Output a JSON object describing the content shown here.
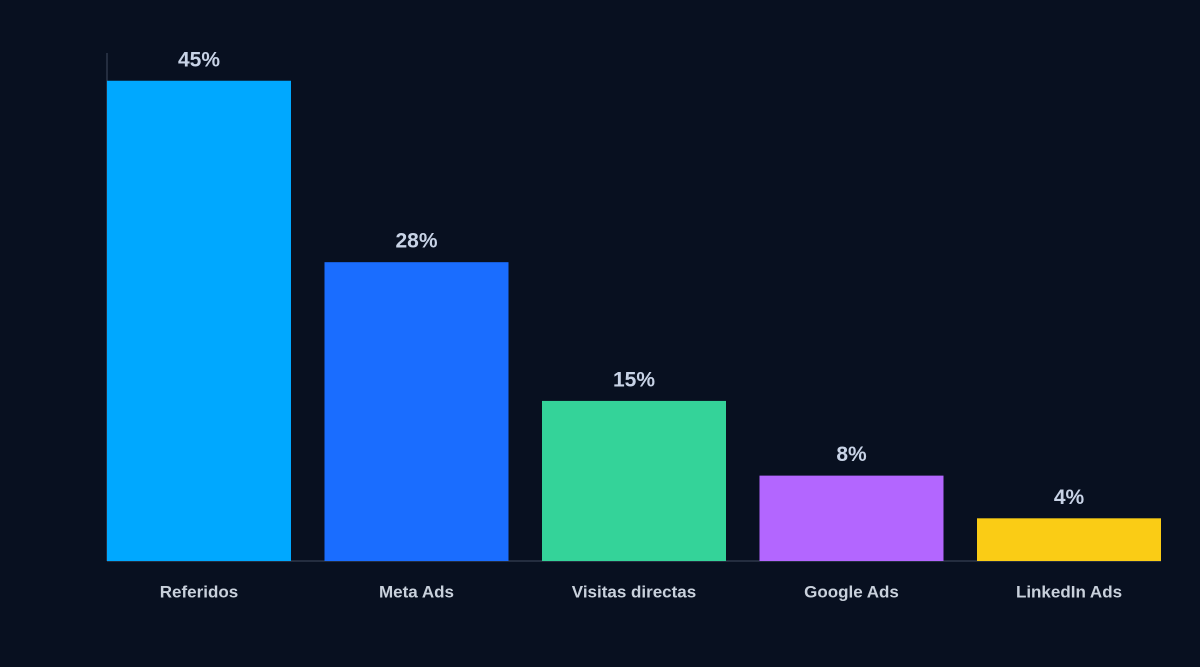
{
  "chart_data": {
    "type": "bar",
    "categories": [
      "Referidos",
      "Meta Ads",
      "Visitas directas",
      "Google Ads",
      "LinkedIn Ads"
    ],
    "values": [
      45,
      28,
      15,
      8,
      4
    ],
    "value_labels": [
      "45%",
      "28%",
      "15%",
      "8%",
      "4%"
    ],
    "colors": [
      "#00a8ff",
      "#1a6dff",
      "#34d399",
      "#b366ff",
      "#facc15"
    ],
    "ylim": [
      0,
      47.6
    ]
  }
}
